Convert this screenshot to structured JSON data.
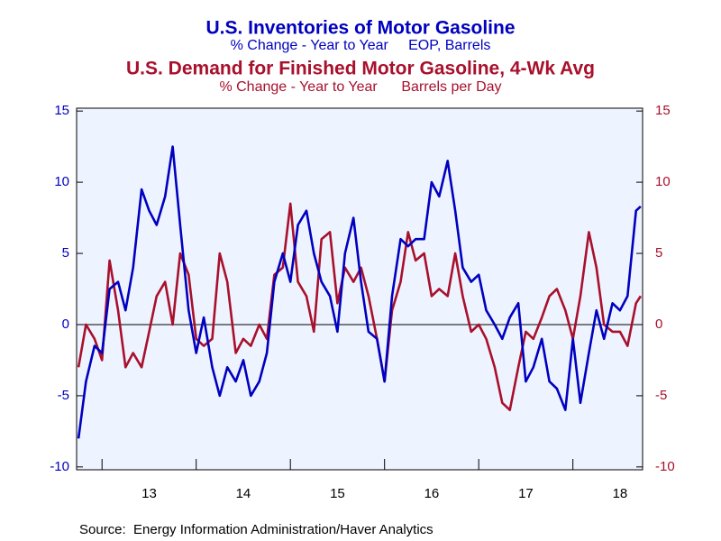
{
  "chart_data": {
    "type": "line",
    "source": "Source:  Energy Information Administration/Haver Analytics",
    "x": [
      12.75,
      12.83,
      12.92,
      13.0,
      13.08,
      13.17,
      13.25,
      13.33,
      13.42,
      13.5,
      13.58,
      13.67,
      13.75,
      13.83,
      13.92,
      14.0,
      14.08,
      14.17,
      14.25,
      14.33,
      14.42,
      14.5,
      14.58,
      14.67,
      14.75,
      14.83,
      14.92,
      15.0,
      15.08,
      15.17,
      15.25,
      15.33,
      15.42,
      15.5,
      15.58,
      15.67,
      15.75,
      15.83,
      15.92,
      16.0,
      16.08,
      16.17,
      16.25,
      16.33,
      16.42,
      16.5,
      16.58,
      16.67,
      16.75,
      16.83,
      16.92,
      17.0,
      17.08,
      17.17,
      17.25,
      17.33,
      17.42,
      17.5,
      17.58,
      17.67,
      17.75,
      17.83,
      17.92,
      18.0,
      18.08,
      18.17,
      18.25,
      18.33,
      18.42,
      18.5,
      18.58,
      18.67,
      18.72
    ],
    "series": [
      {
        "name": "U.S. Inventories of Motor Gasoline",
        "subtitle": "% Change - Year to Year     EOP, Barrels",
        "color": "#0000c0",
        "axis": "y",
        "values": [
          -8,
          -4,
          -1.5,
          -2,
          2.5,
          3,
          1,
          4,
          9.5,
          8,
          7,
          9,
          12.5,
          7,
          1,
          -2,
          0.5,
          -3,
          -5,
          -3,
          -4,
          -2.5,
          -5,
          -4,
          -2,
          3,
          5,
          3,
          7,
          8,
          5,
          3,
          2,
          -0.5,
          5,
          7.5,
          3,
          -0.5,
          -1,
          -4,
          2,
          6,
          5.5,
          6,
          6,
          10,
          9,
          11.5,
          8,
          4,
          3,
          3.5,
          1,
          0,
          -1,
          0.5,
          1.5,
          -4,
          -3,
          -1,
          -4,
          -4.5,
          -6,
          -1,
          -5.5,
          -2,
          1,
          -1,
          1.5,
          1,
          2,
          8,
          8.3
        ]
      },
      {
        "name": "U.S. Demand for Finished Motor Gasoline, 4-Wk Avg",
        "subtitle": "% Change - Year to Year      Barrels per Day",
        "color": "#a8102c",
        "axis": "y2",
        "values": [
          -3,
          0,
          -1,
          -2.5,
          4.5,
          1,
          -3,
          -2,
          -3,
          -0.5,
          2,
          3,
          0,
          5,
          3.5,
          -1,
          -1.5,
          -1,
          5,
          3,
          -2,
          -1,
          -1.5,
          0,
          -1,
          3.5,
          4,
          8.5,
          3,
          2,
          -0.5,
          6,
          6.5,
          1.5,
          4,
          3,
          4,
          2,
          -1,
          -4,
          1,
          3,
          6.5,
          4.5,
          5,
          2,
          2.5,
          2,
          5,
          2,
          -0.5,
          0,
          -1,
          -3,
          -5.5,
          -6,
          -3,
          -0.5,
          -1,
          0.5,
          2,
          2.5,
          1,
          -1,
          2,
          6.5,
          4,
          0,
          -0.5,
          -0.5,
          -1.5,
          1.5,
          2
        ]
      }
    ],
    "xlim": [
      12.73,
      18.74
    ],
    "xticks": [
      {
        "value": 13,
        "label": "13"
      },
      {
        "value": 14,
        "label": "14"
      },
      {
        "value": 15,
        "label": "15"
      },
      {
        "value": 16,
        "label": "16"
      },
      {
        "value": 17,
        "label": "17"
      },
      {
        "value": 18,
        "label": "18"
      }
    ],
    "ylim": [
      -10.2,
      15.2
    ],
    "yticks": [
      -10,
      -5,
      0,
      5,
      10,
      15
    ],
    "y2lim": [
      -10.2,
      15.2
    ],
    "y2ticks": [
      -10,
      -5,
      0,
      5,
      10,
      15
    ]
  }
}
